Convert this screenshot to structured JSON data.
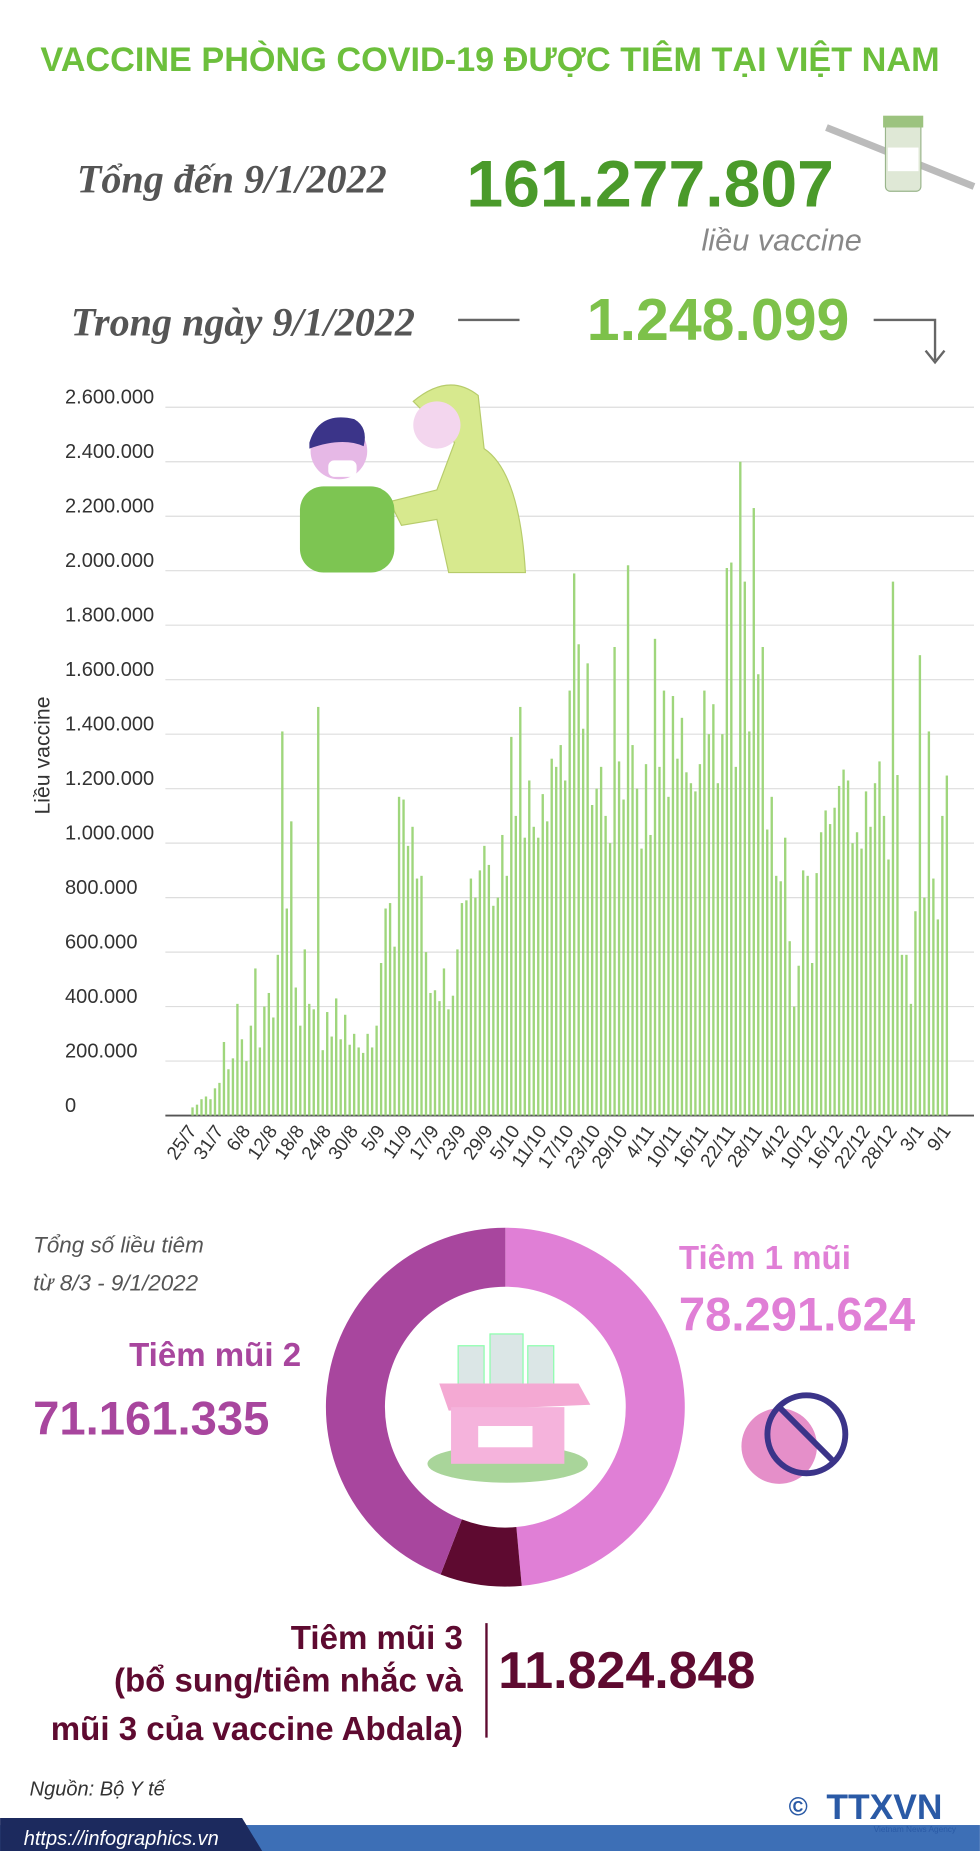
{
  "header": {
    "title": "VACCINE PHÒNG COVID-19 ĐƯỢC TIÊM TẠI VIỆT NAM",
    "total_label": "Tổng đến 9/1/2022",
    "total_value": "161.277.807",
    "total_unit": "liều vaccine",
    "day_label": "Trong ngày 9/1/2022",
    "day_value": "1.248.099"
  },
  "chart_data": [
    {
      "type": "bar",
      "y_label": "Liều vaccine",
      "color": "#9fd67c",
      "grid": true,
      "ylim": [
        0,
        2600000
      ],
      "yticks": [
        0,
        {
          "value": 200000,
          "label": "200.000"
        },
        {
          "value": 400000,
          "label": "400.000"
        },
        {
          "value": 600000,
          "label": "600.000"
        },
        {
          "value": 800000,
          "label": "800.000"
        },
        {
          "value": 1000000,
          "label": "1.000.000"
        },
        {
          "value": 1200000,
          "label": "1.200.000"
        },
        {
          "value": 1400000,
          "label": "1.400.000"
        },
        {
          "value": 1600000,
          "label": "1.600.000"
        },
        {
          "value": 1800000,
          "label": "1.800.000"
        },
        {
          "value": 2000000,
          "label": "2.000.000"
        },
        {
          "value": 2200000,
          "label": "2.200.000"
        },
        {
          "value": 2400000,
          "label": "2.400.000"
        },
        {
          "value": 2600000,
          "label": "2.600.000"
        }
      ],
      "categories": [
        "25/7",
        null,
        null,
        null,
        null,
        null,
        "31/7",
        null,
        null,
        null,
        null,
        null,
        "6/8",
        null,
        null,
        null,
        null,
        null,
        "12/8",
        null,
        null,
        null,
        null,
        null,
        "18/8",
        null,
        null,
        null,
        null,
        null,
        "24/8",
        null,
        null,
        null,
        null,
        null,
        "30/8",
        null,
        null,
        null,
        null,
        null,
        "5/9",
        null,
        null,
        null,
        null,
        null,
        "11/9",
        null,
        null,
        null,
        null,
        null,
        "17/9",
        null,
        null,
        null,
        null,
        null,
        "23/9",
        null,
        null,
        null,
        null,
        null,
        "29/9",
        null,
        null,
        null,
        null,
        null,
        "5/10",
        null,
        null,
        null,
        null,
        null,
        "11/10",
        null,
        null,
        null,
        null,
        null,
        "17/10",
        null,
        null,
        null,
        null,
        null,
        "23/10",
        null,
        null,
        null,
        null,
        null,
        "29/10",
        null,
        null,
        null,
        null,
        null,
        "4/11",
        null,
        null,
        null,
        null,
        null,
        "10/11",
        null,
        null,
        null,
        null,
        null,
        "16/11",
        null,
        null,
        null,
        null,
        null,
        "22/11",
        null,
        null,
        null,
        null,
        null,
        "28/11",
        null,
        null,
        null,
        null,
        null,
        "4/12",
        null,
        null,
        null,
        null,
        null,
        "10/12",
        null,
        null,
        null,
        null,
        null,
        "16/12",
        null,
        null,
        null,
        null,
        null,
        "22/12",
        null,
        null,
        null,
        null,
        null,
        "28/12",
        null,
        null,
        null,
        null,
        null,
        "3/1",
        null,
        null,
        null,
        null,
        null,
        "9/1"
      ],
      "values": [
        30000,
        40000,
        60000,
        70000,
        60000,
        100000,
        120000,
        270000,
        170000,
        210000,
        410000,
        280000,
        200000,
        330000,
        540000,
        250000,
        400000,
        450000,
        360000,
        590000,
        1410000,
        760000,
        1080000,
        470000,
        330000,
        610000,
        410000,
        390000,
        1500000,
        240000,
        380000,
        290000,
        430000,
        280000,
        370000,
        260000,
        300000,
        250000,
        230000,
        300000,
        250000,
        330000,
        560000,
        760000,
        780000,
        620000,
        1170000,
        1160000,
        990000,
        1060000,
        870000,
        880000,
        600000,
        450000,
        460000,
        420000,
        540000,
        390000,
        440000,
        610000,
        780000,
        790000,
        870000,
        800000,
        900000,
        990000,
        920000,
        770000,
        800000,
        1030000,
        880000,
        1390000,
        1100000,
        1500000,
        1020000,
        1230000,
        1060000,
        1020000,
        1180000,
        1080000,
        1310000,
        1280000,
        1360000,
        1230000,
        1560000,
        1990000,
        1730000,
        1420000,
        1660000,
        1140000,
        1200000,
        1280000,
        1100000,
        1000000,
        1720000,
        1300000,
        1160000,
        2020000,
        1360000,
        1200000,
        980000,
        1290000,
        1030000,
        1750000,
        1280000,
        1560000,
        1170000,
        1540000,
        1310000,
        1460000,
        1260000,
        1220000,
        1190000,
        1290000,
        1560000,
        1400000,
        1510000,
        1220000,
        1400000,
        2010000,
        2030000,
        1280000,
        2400000,
        1960000,
        1410000,
        2230000,
        1620000,
        1720000,
        1050000,
        1170000,
        880000,
        860000,
        1020000,
        640000,
        400000,
        550000,
        900000,
        880000,
        560000,
        890000,
        1040000,
        1120000,
        1070000,
        1130000,
        1210000,
        1270000,
        1230000,
        1000000,
        1040000,
        980000,
        1190000,
        1060000,
        1220000,
        1300000,
        1100000,
        940000,
        1960000,
        1250000,
        590000,
        590000,
        410000,
        750000,
        1690000,
        800000,
        1410000,
        870000,
        720000,
        1100000,
        1248099
      ]
    },
    {
      "type": "donut",
      "title": [
        "Tổng số liều tiêm",
        "từ 8/3 - 9/1/2022"
      ],
      "categories": [
        [
          "Tiêm 1 mũi"
        ],
        [
          "Tiêm mũi 2"
        ],
        [
          "Tiêm mũi 3",
          "(bổ sung/tiêm nhắc và",
          "mũi 3 của vaccine Abdala)"
        ]
      ],
      "values": [
        78291624,
        71161335,
        11824848
      ],
      "value_labels": [
        "78.291.624",
        "71.161.335",
        "11.824.848"
      ],
      "colors": [
        "#e07fd6",
        "#a8469e",
        "#5e0a30"
      ]
    }
  ],
  "footer": {
    "source": "Nguồn: Bộ Y tế",
    "url": "https://infographics.vn",
    "copyright": "©",
    "logo": "TTXVN",
    "agency": "Vietnam News Agency"
  }
}
